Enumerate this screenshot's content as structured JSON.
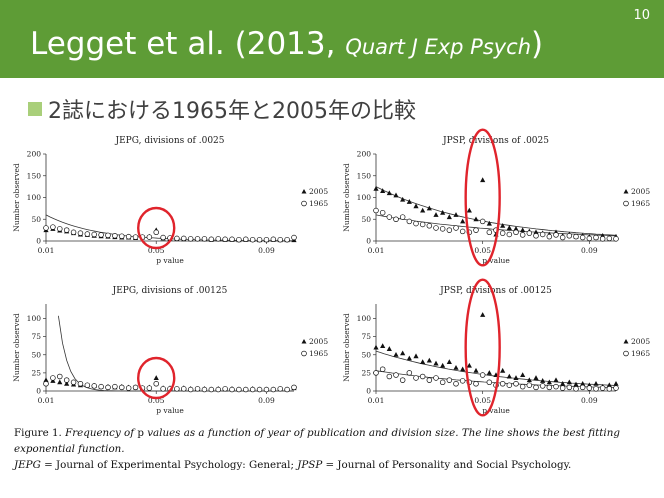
{
  "slide": {
    "number": "10",
    "title_main": "Legget et al. (2013, ",
    "title_journal": "Quart J Exp Psych",
    "title_end": ")",
    "bullet": "2誌における1965年と2005年の比較",
    "accent_color": "#5e9c36",
    "bullet_color": "#a9cf7a",
    "highlight_color": "#e0242c"
  },
  "caption": {
    "fig_label": "Figure 1.",
    "text1": "Frequency of",
    "p": "p",
    "text2": "values as a function of year of publication and division size. The line shows the best fitting exponential function.",
    "jepg": "JEPG",
    "jepg_def": "= Journal of Experimental Psychology: General;",
    "jpsp": "JPSP",
    "jpsp_def": "= Journal of Personality and Social Psychology."
  },
  "chart_data": [
    {
      "type": "scatter",
      "title": "JEPG, divisions of .0025",
      "ylabel": "Number observed",
      "xlabel": "p value",
      "xlim": [
        0.01,
        0.1
      ],
      "ylim": [
        0,
        200
      ],
      "yticks": [
        0,
        50,
        100,
        150,
        200
      ],
      "xticks": [
        "0.01",
        "0.05",
        "0.09"
      ],
      "legend": [
        "2005",
        "1965"
      ],
      "series": [
        {
          "name": "2005",
          "marker": "triangle",
          "x": [
            0.01,
            0.0125,
            0.015,
            0.0175,
            0.02,
            0.0225,
            0.025,
            0.0275,
            0.03,
            0.0325,
            0.035,
            0.0375,
            0.04,
            0.0425,
            0.045,
            0.0475,
            0.05,
            0.0525,
            0.055,
            0.0575,
            0.06,
            0.0625,
            0.065,
            0.0675,
            0.07,
            0.0725,
            0.075,
            0.0775,
            0.08,
            0.0825,
            0.085,
            0.0875,
            0.09,
            0.0925,
            0.095,
            0.0975,
            0.1
          ],
          "y": [
            25,
            28,
            24,
            22,
            18,
            15,
            14,
            12,
            11,
            10,
            9,
            8,
            8,
            7,
            8,
            10,
            25,
            6,
            5,
            5,
            4,
            4,
            5,
            4,
            3,
            4,
            3,
            3,
            2,
            3,
            3,
            2,
            2,
            3,
            2,
            2,
            2
          ]
        },
        {
          "name": "1965",
          "marker": "circle",
          "x": [
            0.01,
            0.0125,
            0.015,
            0.0175,
            0.02,
            0.0225,
            0.025,
            0.0275,
            0.03,
            0.0325,
            0.035,
            0.0375,
            0.04,
            0.0425,
            0.045,
            0.0475,
            0.05,
            0.0525,
            0.055,
            0.0575,
            0.06,
            0.0625,
            0.065,
            0.0675,
            0.07,
            0.0725,
            0.075,
            0.0775,
            0.08,
            0.0825,
            0.085,
            0.0875,
            0.09,
            0.0925,
            0.095,
            0.0975,
            0.1
          ],
          "y": [
            30,
            32,
            28,
            25,
            20,
            18,
            16,
            15,
            14,
            13,
            12,
            11,
            10,
            9,
            9,
            9,
            20,
            8,
            7,
            6,
            6,
            5,
            5,
            5,
            4,
            5,
            4,
            4,
            3,
            4,
            3,
            3,
            3,
            4,
            3,
            3,
            8
          ]
        }
      ],
      "fit": [
        {
          "a": 60,
          "b": 55
        }
      ],
      "highlight_x": 0.05
    },
    {
      "type": "scatter",
      "title": "JPSP, divisions of .0025",
      "ylabel": "Number observed",
      "xlabel": "p value",
      "xlim": [
        0.01,
        0.1
      ],
      "ylim": [
        0,
        200
      ],
      "yticks": [
        0,
        50,
        100,
        150,
        200
      ],
      "xticks": [
        "0.01",
        "0.05",
        "0.09"
      ],
      "legend": [
        "2005",
        "1965"
      ],
      "series": [
        {
          "name": "2005",
          "marker": "triangle",
          "x": [
            0.01,
            0.0125,
            0.015,
            0.0175,
            0.02,
            0.0225,
            0.025,
            0.0275,
            0.03,
            0.0325,
            0.035,
            0.0375,
            0.04,
            0.0425,
            0.045,
            0.0475,
            0.05,
            0.0525,
            0.055,
            0.0575,
            0.06,
            0.0625,
            0.065,
            0.0675,
            0.07,
            0.0725,
            0.075,
            0.0775,
            0.08,
            0.0825,
            0.085,
            0.0875,
            0.09,
            0.0925,
            0.095,
            0.0975,
            0.1
          ],
          "y": [
            120,
            115,
            110,
            105,
            95,
            90,
            80,
            70,
            75,
            60,
            65,
            55,
            60,
            45,
            70,
            50,
            140,
            40,
            15,
            35,
            30,
            28,
            25,
            22,
            20,
            18,
            15,
            20,
            12,
            15,
            10,
            12,
            10,
            8,
            12,
            8,
            10
          ]
        },
        {
          "name": "1965",
          "marker": "circle",
          "x": [
            0.01,
            0.0125,
            0.015,
            0.0175,
            0.02,
            0.0225,
            0.025,
            0.0275,
            0.03,
            0.0325,
            0.035,
            0.0375,
            0.04,
            0.0425,
            0.045,
            0.0475,
            0.05,
            0.0525,
            0.055,
            0.0575,
            0.06,
            0.0625,
            0.065,
            0.0675,
            0.07,
            0.0725,
            0.075,
            0.0775,
            0.08,
            0.0825,
            0.085,
            0.0875,
            0.09,
            0.0925,
            0.095,
            0.0975,
            0.1
          ],
          "y": [
            70,
            65,
            55,
            50,
            55,
            45,
            40,
            38,
            35,
            30,
            28,
            25,
            30,
            22,
            20,
            25,
            45,
            20,
            25,
            18,
            15,
            20,
            14,
            18,
            12,
            15,
            10,
            14,
            8,
            12,
            10,
            8,
            6,
            8,
            5,
            6,
            5
          ]
        }
      ],
      "fit": [
        {
          "a": 125,
          "b": 25
        },
        {
          "a": 60,
          "b": 18
        }
      ],
      "highlight_x": 0.05
    },
    {
      "type": "scatter",
      "title": "JEPG, divisions of .00125",
      "ylabel": "Number observed",
      "xlabel": "p value",
      "xlim": [
        0.01,
        0.1
      ],
      "ylim": [
        0,
        120
      ],
      "yticks": [
        0,
        25,
        50,
        75,
        100
      ],
      "xticks": [
        "0.01",
        "0.05",
        "0.09"
      ],
      "legend": [
        "2005",
        "1965"
      ],
      "series": [
        {
          "name": "2005",
          "marker": "triangle",
          "x": [
            0.01,
            0.0125,
            0.015,
            0.0175,
            0.02,
            0.0225,
            0.025,
            0.0275,
            0.03,
            0.0325,
            0.035,
            0.0375,
            0.04,
            0.0425,
            0.045,
            0.0475,
            0.05,
            0.0525,
            0.055,
            0.0575,
            0.06,
            0.0625,
            0.065,
            0.0675,
            0.07,
            0.0725,
            0.075,
            0.0775,
            0.08,
            0.0825,
            0.085,
            0.0875,
            0.09,
            0.0925,
            0.095,
            0.0975,
            0.1
          ],
          "y": [
            15,
            14,
            12,
            10,
            9,
            8,
            8,
            7,
            6,
            6,
            5,
            6,
            5,
            5,
            4,
            5,
            18,
            4,
            4,
            3,
            4,
            3,
            3,
            3,
            2,
            3,
            2,
            3,
            2,
            2,
            3,
            2,
            2,
            2,
            3,
            2,
            4
          ]
        },
        {
          "name": "1965",
          "marker": "circle",
          "x": [
            0.01,
            0.0125,
            0.015,
            0.0175,
            0.02,
            0.0225,
            0.025,
            0.0275,
            0.03,
            0.0325,
            0.035,
            0.0375,
            0.04,
            0.0425,
            0.045,
            0.0475,
            0.05,
            0.0525,
            0.055,
            0.0575,
            0.06,
            0.0625,
            0.065,
            0.0675,
            0.07,
            0.0725,
            0.075,
            0.0775,
            0.08,
            0.0825,
            0.085,
            0.0875,
            0.09,
            0.0925,
            0.095,
            0.0975,
            0.1
          ],
          "y": [
            10,
            18,
            20,
            15,
            12,
            10,
            8,
            7,
            6,
            5,
            6,
            5,
            4,
            5,
            4,
            4,
            10,
            3,
            3,
            3,
            3,
            2,
            3,
            2,
            2,
            2,
            3,
            2,
            2,
            2,
            2,
            2,
            2,
            2,
            3,
            2,
            5
          ]
        }
      ],
      "fit": [
        {
          "a": 400,
          "b": 300
        }
      ],
      "highlight_x": 0.05
    },
    {
      "type": "scatter",
      "title": "JPSP, divisions of .00125",
      "ylabel": "Number observed",
      "xlabel": "p value",
      "xlim": [
        0.01,
        0.1
      ],
      "ylim": [
        0,
        120
      ],
      "yticks": [
        0,
        25,
        50,
        75,
        100
      ],
      "xticks": [
        "0.01",
        "0.05",
        "0.09"
      ],
      "legend": [
        "2005",
        "1965"
      ],
      "series": [
        {
          "name": "2005",
          "marker": "triangle",
          "x": [
            0.01,
            0.0125,
            0.015,
            0.0175,
            0.02,
            0.0225,
            0.025,
            0.0275,
            0.03,
            0.0325,
            0.035,
            0.0375,
            0.04,
            0.0425,
            0.045,
            0.0475,
            0.05,
            0.0525,
            0.055,
            0.0575,
            0.06,
            0.0625,
            0.065,
            0.0675,
            0.07,
            0.0725,
            0.075,
            0.0775,
            0.08,
            0.0825,
            0.085,
            0.0875,
            0.09,
            0.0925,
            0.095,
            0.0975,
            0.1
          ],
          "y": [
            60,
            62,
            58,
            50,
            52,
            45,
            48,
            40,
            42,
            38,
            35,
            40,
            32,
            30,
            35,
            28,
            105,
            25,
            22,
            28,
            20,
            18,
            22,
            15,
            18,
            14,
            12,
            15,
            10,
            12,
            9,
            10,
            8,
            10,
            6,
            8,
            10
          ]
        },
        {
          "name": "1965",
          "marker": "circle",
          "x": [
            0.01,
            0.0125,
            0.015,
            0.0175,
            0.02,
            0.0225,
            0.025,
            0.0275,
            0.03,
            0.0325,
            0.035,
            0.0375,
            0.04,
            0.0425,
            0.045,
            0.0475,
            0.05,
            0.0525,
            0.055,
            0.0575,
            0.06,
            0.0625,
            0.065,
            0.0675,
            0.07,
            0.0725,
            0.075,
            0.0775,
            0.08,
            0.0825,
            0.085,
            0.0875,
            0.09,
            0.0925,
            0.095,
            0.0975,
            0.1
          ],
          "y": [
            25,
            30,
            20,
            22,
            15,
            25,
            18,
            20,
            15,
            18,
            12,
            15,
            10,
            14,
            12,
            10,
            22,
            12,
            8,
            10,
            8,
            10,
            6,
            8,
            5,
            7,
            5,
            6,
            4,
            5,
            3,
            5,
            4,
            3,
            4,
            3,
            4
          ]
        }
      ],
      "fit": [
        {
          "a": 55,
          "b": 22
        },
        {
          "a": 28,
          "b": 20
        }
      ],
      "highlight_x": 0.05
    }
  ]
}
